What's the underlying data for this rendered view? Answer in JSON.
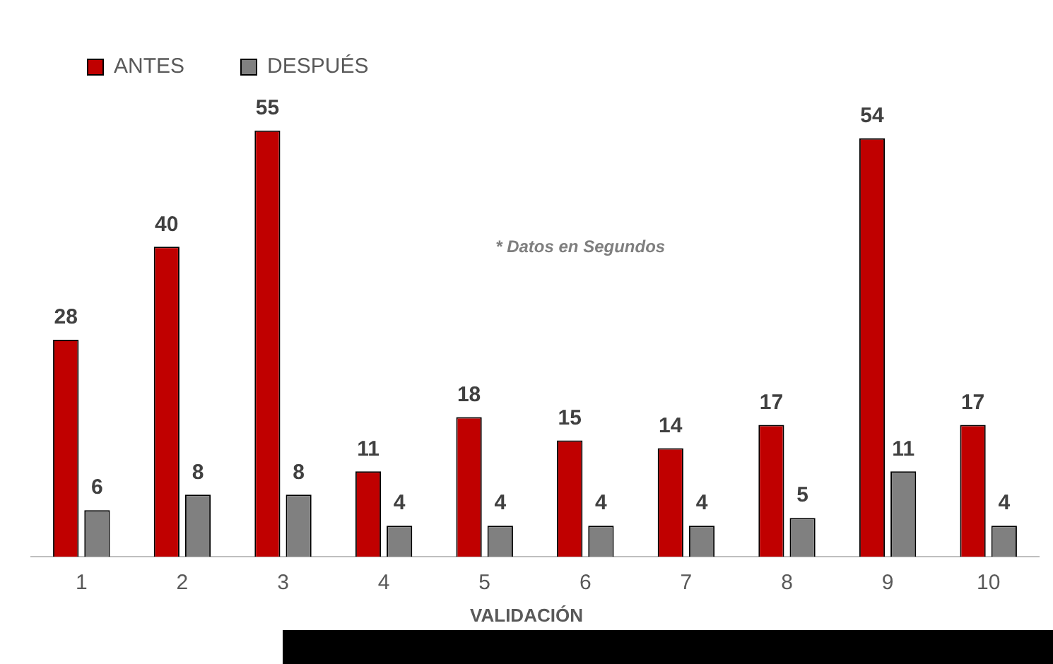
{
  "chart_data": {
    "type": "bar",
    "xlabel": "VALIDACIÓN",
    "annotations": [
      "* Datos en Segundos"
    ],
    "categories": [
      "1",
      "2",
      "3",
      "4",
      "5",
      "6",
      "7",
      "8",
      "9",
      "10"
    ],
    "series": [
      {
        "name": "ANTES",
        "color": "#c00000",
        "values": [
          28,
          40,
          55,
          11,
          18,
          15,
          14,
          17,
          54,
          17
        ]
      },
      {
        "name": "DESPUÉS",
        "color": "#808080",
        "values": [
          6,
          8,
          8,
          4,
          4,
          4,
          4,
          5,
          11,
          4
        ]
      }
    ],
    "data_labels": true,
    "legend": "top left",
    "grid": false
  }
}
